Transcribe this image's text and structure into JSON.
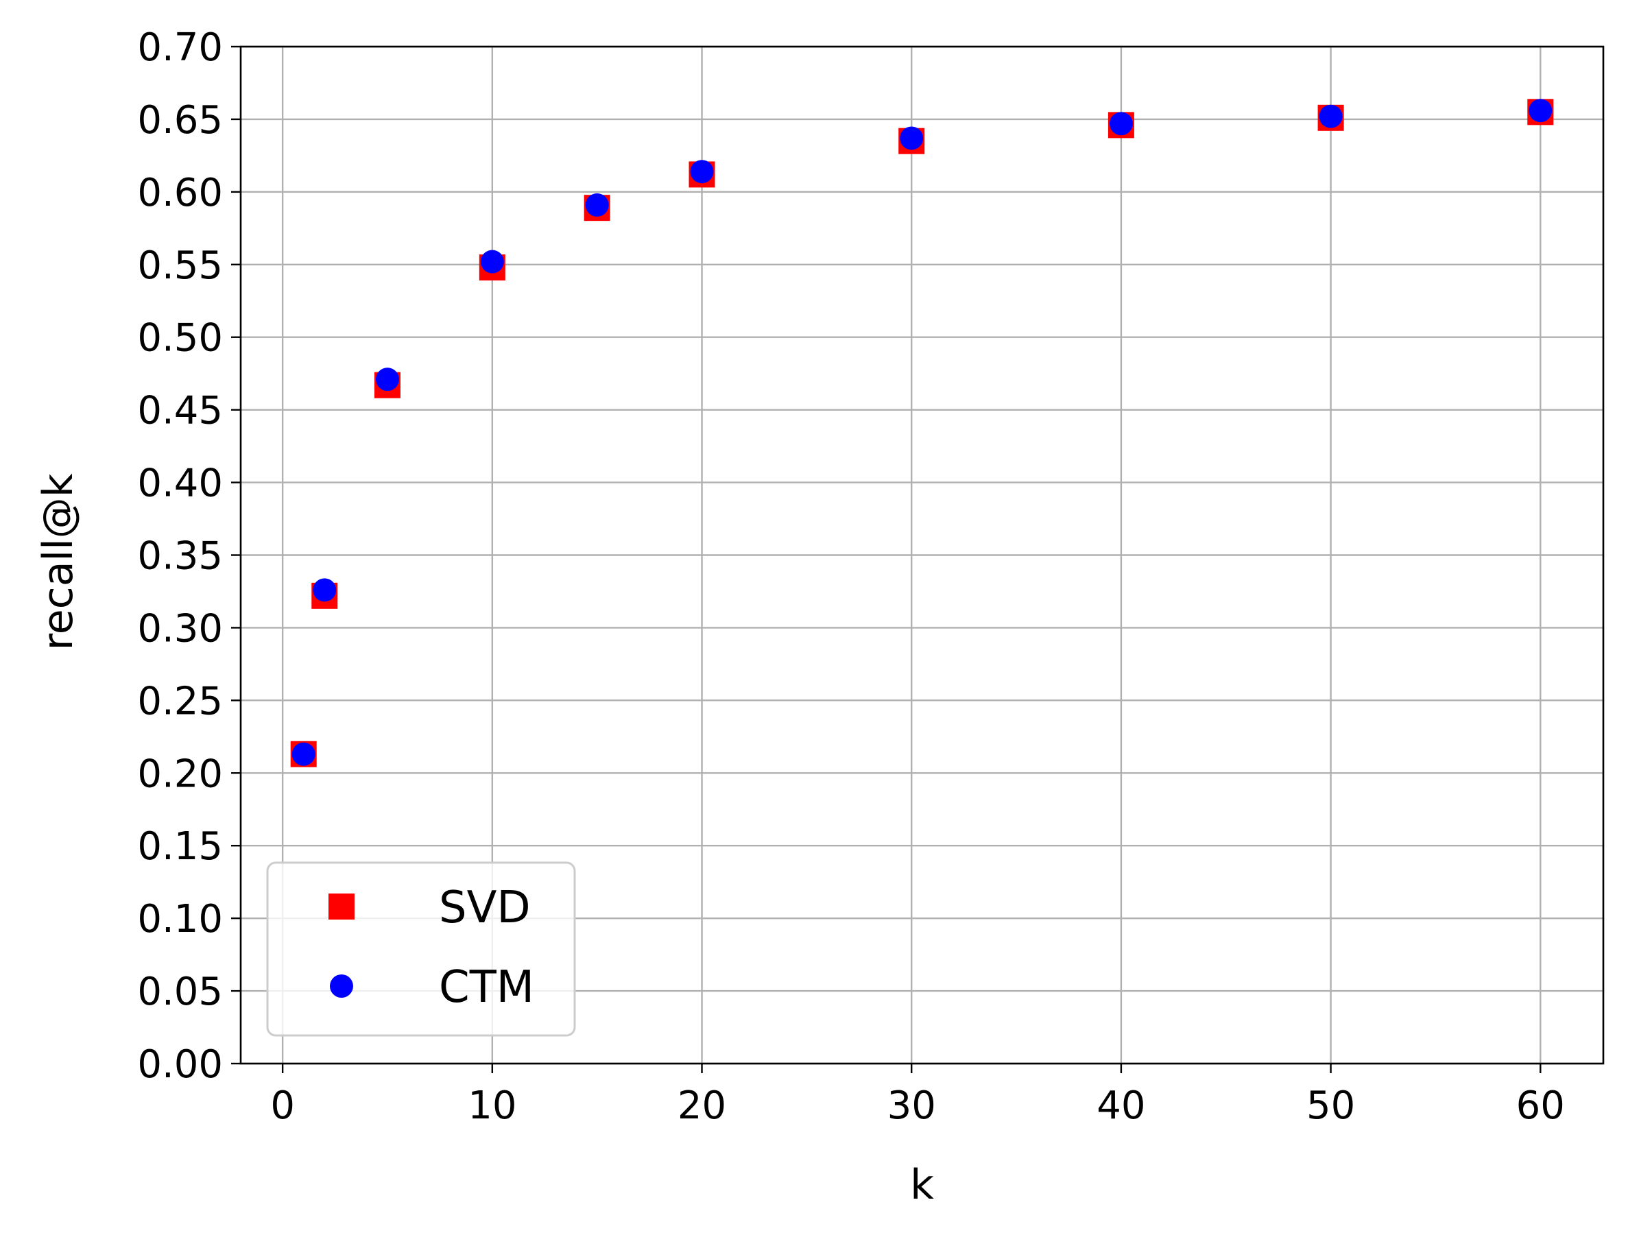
{
  "chart_data": {
    "type": "scatter",
    "xlabel": "k",
    "ylabel": "recall@k",
    "xlim": [
      -2,
      63
    ],
    "ylim": [
      0.0,
      0.7
    ],
    "x_ticks": [
      0,
      10,
      20,
      30,
      40,
      50,
      60
    ],
    "x_tick_labels": [
      "0",
      "10",
      "20",
      "30",
      "40",
      "50",
      "60"
    ],
    "y_ticks": [
      0.0,
      0.05,
      0.1,
      0.15,
      0.2,
      0.25,
      0.3,
      0.35,
      0.4,
      0.45,
      0.5,
      0.55,
      0.6,
      0.65,
      0.7
    ],
    "y_tick_labels": [
      "0.00",
      "0.05",
      "0.10",
      "0.15",
      "0.20",
      "0.25",
      "0.30",
      "0.35",
      "0.40",
      "0.45",
      "0.50",
      "0.55",
      "0.60",
      "0.65",
      "0.70"
    ],
    "grid": true,
    "legend": {
      "placement": "lower-left",
      "entries": [
        "SVD",
        "CTM"
      ]
    },
    "series": [
      {
        "name": "SVD",
        "marker": "square",
        "color": "#ff0000",
        "x": [
          1,
          2,
          5,
          10,
          15,
          20,
          30,
          40,
          50,
          60
        ],
        "y": [
          0.213,
          0.322,
          0.467,
          0.548,
          0.589,
          0.612,
          0.635,
          0.646,
          0.651,
          0.655
        ]
      },
      {
        "name": "CTM",
        "marker": "circle",
        "color": "#0000ff",
        "x": [
          1,
          2,
          5,
          10,
          15,
          20,
          30,
          40,
          50,
          60
        ],
        "y": [
          0.213,
          0.326,
          0.471,
          0.552,
          0.591,
          0.614,
          0.637,
          0.647,
          0.652,
          0.656
        ]
      }
    ]
  }
}
